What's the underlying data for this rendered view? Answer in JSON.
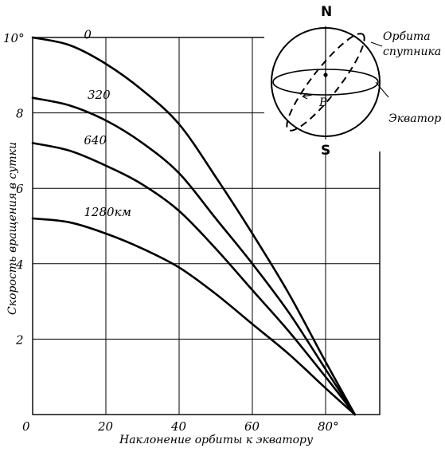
{
  "chart_data": {
    "type": "line",
    "xlabel": "Наклонение орбиты к экватору",
    "ylabel": "Скорость вращения в сутки",
    "xlim": [
      0,
      90
    ],
    "ylim": [
      0,
      10
    ],
    "x_ticks": [
      "0",
      "20",
      "40",
      "60",
      "80°"
    ],
    "y_ticks": [
      "2",
      "4",
      "6",
      "8",
      "10°"
    ],
    "grid": true,
    "series": [
      {
        "name": "0",
        "x": [
          0,
          10,
          20,
          30,
          40,
          50,
          60,
          70,
          80,
          88
        ],
        "values": [
          10.0,
          9.8,
          9.3,
          8.6,
          7.7,
          6.3,
          4.8,
          3.2,
          1.4,
          0
        ]
      },
      {
        "name": "320",
        "x": [
          0,
          10,
          20,
          30,
          40,
          50,
          60,
          70,
          80,
          88
        ],
        "values": [
          8.4,
          8.2,
          7.8,
          7.2,
          6.4,
          5.2,
          4.0,
          2.7,
          1.2,
          0
        ]
      },
      {
        "name": "640",
        "x": [
          0,
          10,
          20,
          30,
          40,
          50,
          60,
          70,
          80,
          88
        ],
        "values": [
          7.2,
          7.0,
          6.6,
          6.1,
          5.4,
          4.4,
          3.3,
          2.2,
          1.0,
          0
        ]
      },
      {
        "name": "1280км",
        "x": [
          0,
          10,
          20,
          30,
          40,
          50,
          60,
          70,
          80,
          88
        ],
        "values": [
          5.2,
          5.1,
          4.8,
          4.4,
          3.9,
          3.2,
          2.4,
          1.6,
          0.7,
          0
        ]
      }
    ]
  },
  "globe": {
    "north": "N",
    "south": "S",
    "orbit_label_line1": "Орбита",
    "orbit_label_line2": "спутника",
    "equator_label": "Экватор",
    "node_label": "B"
  }
}
